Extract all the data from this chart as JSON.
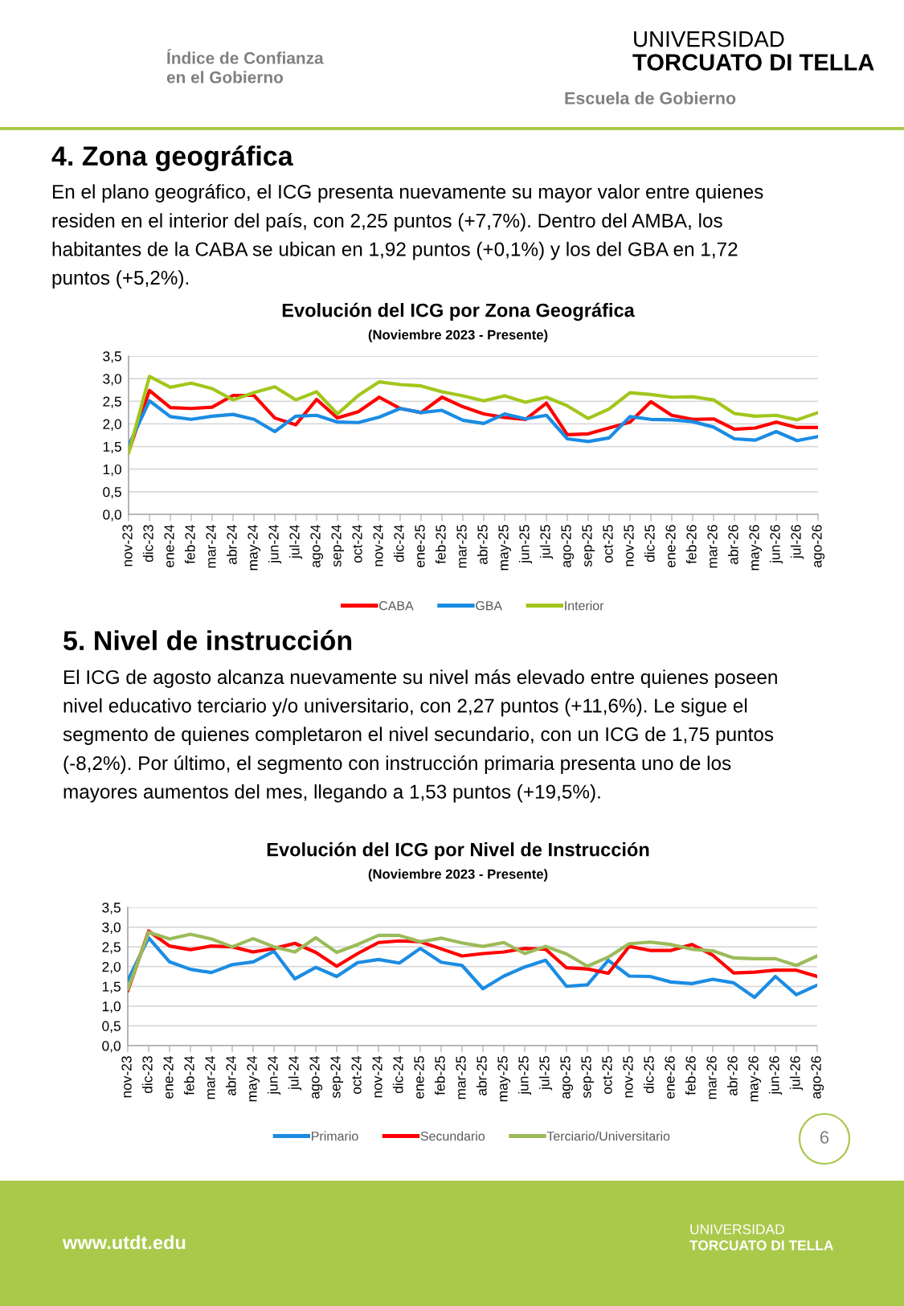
{
  "chart_data": [
    {
      "type": "line",
      "title": "Evolución del ICG por Zona Geográfica",
      "subtitle": "(Noviembre 2023 - Presente)",
      "categories": [
        "nov-23",
        "dic-23",
        "ene-24",
        "feb-24",
        "mar-24",
        "abr-24",
        "may-24",
        "jun-24",
        "jul-24",
        "ago-24",
        "sep-24",
        "oct-24",
        "nov-24",
        "dic-24",
        "ene-25",
        "feb-25",
        "mar-25",
        "abr-25",
        "may-25",
        "jun-25",
        "jul-25",
        "ago-25",
        "sep-25",
        "oct-25",
        "nov-25",
        "dic-25",
        "ene-26",
        "feb-26",
        "mar-26",
        "abr-26",
        "may-26",
        "jun-26",
        "jul-26",
        "ago-26"
      ],
      "series": [
        {
          "name": "CABA",
          "color": "#ff0000",
          "values": [
            1.38,
            2.74,
            2.36,
            2.34,
            2.37,
            2.63,
            2.63,
            2.13,
            1.98,
            2.54,
            2.13,
            2.27,
            2.59,
            2.34,
            2.25,
            2.59,
            2.38,
            2.22,
            2.14,
            2.1,
            2.46,
            1.76,
            1.78,
            1.91,
            2.04,
            2.49,
            2.19,
            2.1,
            2.11,
            1.88,
            1.91,
            2.04,
            1.92,
            1.92
          ]
        },
        {
          "name": "GBA",
          "color": "#1b8ce3",
          "values": [
            1.52,
            2.51,
            2.16,
            2.1,
            2.17,
            2.21,
            2.1,
            1.83,
            2.17,
            2.19,
            2.04,
            2.03,
            2.15,
            2.34,
            2.25,
            2.3,
            2.08,
            2.01,
            2.22,
            2.11,
            2.19,
            1.67,
            1.61,
            1.69,
            2.16,
            2.1,
            2.09,
            2.05,
            1.93,
            1.67,
            1.64,
            1.83,
            1.63,
            1.72
          ]
        },
        {
          "name": "Interior",
          "color": "#a2c61c",
          "values": [
            1.35,
            3.05,
            2.81,
            2.9,
            2.78,
            2.53,
            2.69,
            2.82,
            2.53,
            2.71,
            2.22,
            2.63,
            2.93,
            2.87,
            2.84,
            2.71,
            2.62,
            2.51,
            2.62,
            2.48,
            2.59,
            2.4,
            2.12,
            2.33,
            2.69,
            2.65,
            2.59,
            2.6,
            2.53,
            2.23,
            2.17,
            2.19,
            2.09,
            2.25
          ]
        }
      ],
      "ylim": [
        0,
        3.5
      ],
      "yticks": [
        {
          "value": 0,
          "label": "0,0"
        },
        {
          "value": 0.5,
          "label": "0,5"
        },
        {
          "value": 1,
          "label": "1,0"
        },
        {
          "value": 1.5,
          "label": "1,5"
        },
        {
          "value": 2,
          "label": "2,0"
        },
        {
          "value": 2.5,
          "label": "2,5"
        },
        {
          "value": 3,
          "label": "3,0"
        },
        {
          "value": 3.5,
          "label": "3,5"
        }
      ],
      "grid": "y",
      "legend": "bottom",
      "line_style": "solid",
      "annotations": [
        "Índice de Confianza\nen el Gobierno",
        "UNIVERSIDAD",
        "TORCUATO DI TELLA",
        "Escuela de Gobierno",
        "4. Zona geográfica",
        "En el plano geográfico, el ICG presenta nuevamente su mayor valor entre quienes\nresiden en el interior del país, con 2,25 puntos (+7,7%). Dentro del AMBA, los\nhabitantes de la CABA se ubican en 1,92 puntos (+0,1%) y los del GBA en 1,72\npuntos (+5,2%)."
      ]
    },
    {
      "type": "line",
      "title": "Evolución del ICG por Nivel de Instrucción",
      "subtitle": "(Noviembre 2023 - Presente)",
      "categories": [
        "nov-23",
        "dic-23",
        "ene-24",
        "feb-24",
        "mar-24",
        "abr-24",
        "may-24",
        "jun-24",
        "jul-24",
        "ago-24",
        "sep-24",
        "oct-24",
        "nov-24",
        "dic-24",
        "ene-25",
        "feb-25",
        "mar-25",
        "abr-25",
        "may-25",
        "jun-25",
        "jul-25",
        "ago-25",
        "sep-25",
        "oct-25",
        "nov-25",
        "dic-25",
        "ene-26",
        "feb-26",
        "mar-26",
        "abr-26",
        "may-26",
        "jun-26",
        "jul-26",
        "ago-26"
      ],
      "series": [
        {
          "name": "Primario",
          "color": "#1b8ce3",
          "values": [
            1.65,
            2.73,
            2.12,
            1.93,
            1.85,
            2.05,
            2.12,
            2.39,
            1.69,
            1.98,
            1.75,
            2.1,
            2.18,
            2.09,
            2.46,
            2.11,
            2.03,
            1.44,
            1.76,
            1.99,
            2.16,
            1.5,
            1.54,
            2.16,
            1.76,
            1.75,
            1.61,
            1.57,
            1.68,
            1.59,
            1.22,
            1.75,
            1.29,
            1.53
          ]
        },
        {
          "name": "Secundario",
          "color": "#ff0000",
          "values": [
            1.38,
            2.9,
            2.52,
            2.43,
            2.52,
            2.5,
            2.37,
            2.46,
            2.59,
            2.36,
            2.01,
            2.33,
            2.61,
            2.65,
            2.63,
            2.45,
            2.27,
            2.33,
            2.37,
            2.46,
            2.44,
            1.97,
            1.94,
            1.83,
            2.51,
            2.41,
            2.41,
            2.56,
            2.29,
            1.84,
            1.86,
            1.91,
            1.91,
            1.75
          ]
        },
        {
          "name": "Terciario/Universitario",
          "color": "#9bbb59",
          "values": [
            1.42,
            2.87,
            2.7,
            2.82,
            2.7,
            2.5,
            2.71,
            2.5,
            2.37,
            2.73,
            2.36,
            2.56,
            2.79,
            2.79,
            2.63,
            2.72,
            2.6,
            2.51,
            2.61,
            2.33,
            2.51,
            2.32,
            2.01,
            2.24,
            2.58,
            2.62,
            2.56,
            2.44,
            2.4,
            2.22,
            2.2,
            2.2,
            2.03,
            2.27
          ]
        }
      ],
      "ylim": [
        0,
        3.5
      ],
      "yticks": [
        {
          "value": 0,
          "label": "0,0"
        },
        {
          "value": 0.5,
          "label": "0,5"
        },
        {
          "value": 1,
          "label": "1,0"
        },
        {
          "value": 1.5,
          "label": "1,5"
        },
        {
          "value": 2,
          "label": "2,0"
        },
        {
          "value": 2.5,
          "label": "2,5"
        },
        {
          "value": 3,
          "label": "3,0"
        },
        {
          "value": 3.5,
          "label": "3,5"
        }
      ],
      "grid": "y",
      "legend": "bottom",
      "line_style": "solid",
      "annotations": [
        "5. Nivel de instrucción",
        "El ICG de agosto alcanza nuevamente su nivel más elevado entre quienes poseen\nnivel educativo terciario y/o universitario, con 2,27 puntos (+11,6%). Le sigue el\nsegmento de quienes completaron el nivel secundario, con un ICG de 1,75 puntos\n(-8,2%). Por último, el segmento con instrucción primaria presenta uno de los\nmayores aumentos del mes, llegando a 1,53 puntos (+19,5%).",
        "6",
        "www.utdt.edu",
        "UNIVERSIDAD",
        "TORCUATO DI TELLA"
      ]
    }
  ]
}
